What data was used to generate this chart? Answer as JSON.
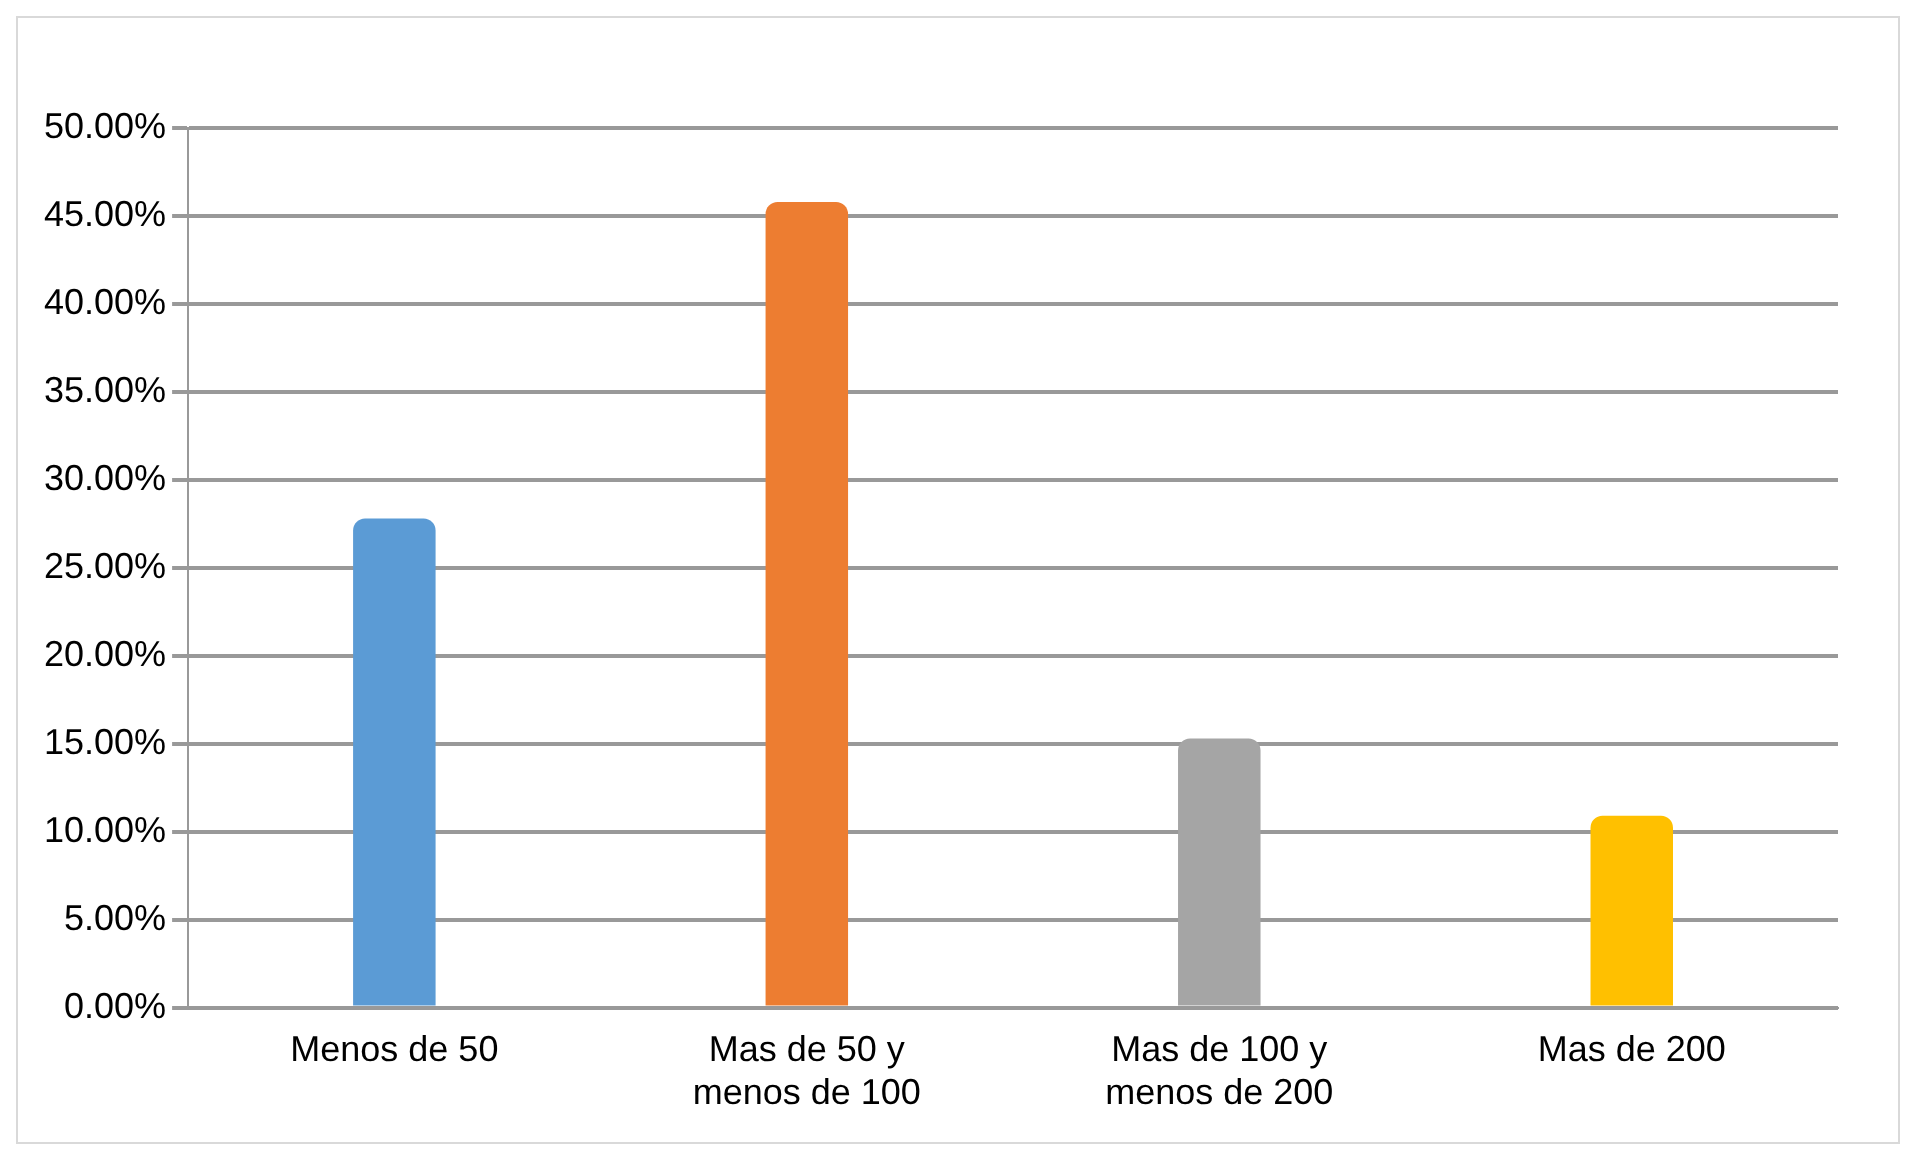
{
  "chart_data": {
    "type": "bar",
    "categories": [
      "Menos de 50",
      "Mas de 50 y menos de 100",
      "Mas de 100 y menos de 200",
      "Mas de 200"
    ],
    "values": [
      27.8,
      45.8,
      15.3,
      10.9
    ],
    "colors": [
      "#5b9bd5",
      "#ed7d31",
      "#a5a5a5",
      "#ffc000"
    ],
    "ylim": [
      0,
      50
    ],
    "yticks": [
      {
        "value": 0,
        "label": "0.00%"
      },
      {
        "value": 5,
        "label": "5.00%"
      },
      {
        "value": 10,
        "label": "10.00%"
      },
      {
        "value": 15,
        "label": "15.00%"
      },
      {
        "value": 20,
        "label": "20.00%"
      },
      {
        "value": 25,
        "label": "25.00%"
      },
      {
        "value": 30,
        "label": "30.00%"
      },
      {
        "value": 35,
        "label": "35.00%"
      },
      {
        "value": 40,
        "label": "40.00%"
      },
      {
        "value": 45,
        "label": "45.00%"
      },
      {
        "value": 50,
        "label": "50.00%"
      }
    ],
    "grid": "y",
    "legend": false
  }
}
